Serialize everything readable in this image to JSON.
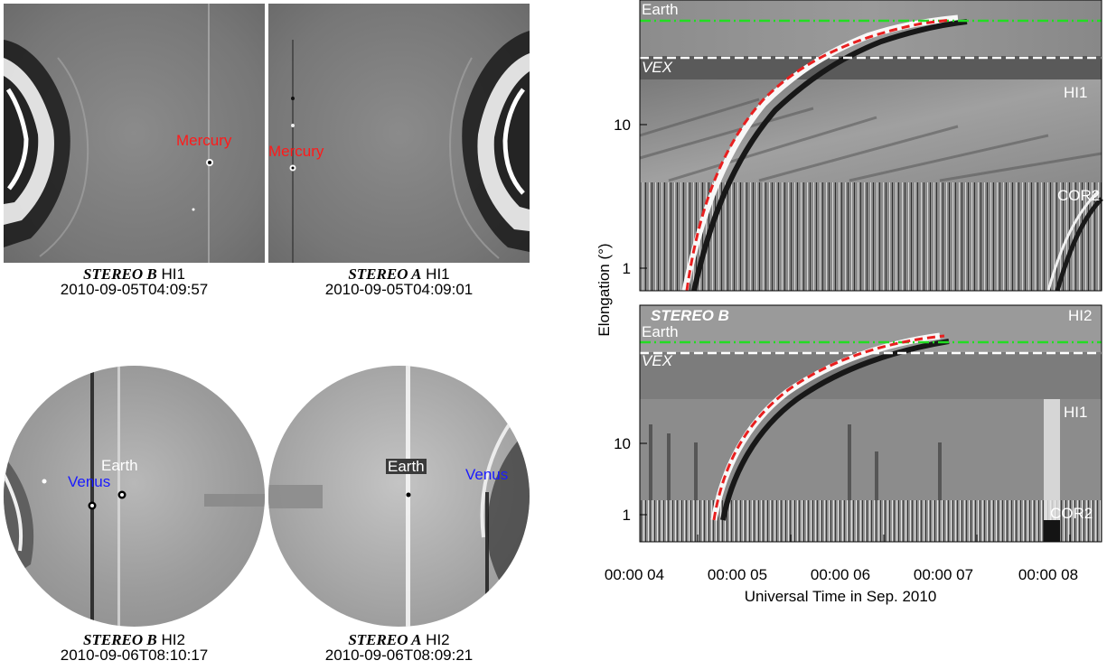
{
  "top_left": {
    "satellite": "STEREO B",
    "instrument": "HI1",
    "timestamp": "2010-09-05T04:09:57",
    "planet_label": "Mercury",
    "planet_label_color": "#ff1a1a"
  },
  "top_right": {
    "satellite": "STEREO A",
    "instrument": "HI1",
    "timestamp": "2010-09-05T04:09:01",
    "planet_label": "Mercury",
    "planet_label_color": "#ff1a1a"
  },
  "bottom_left": {
    "satellite": "STEREO B",
    "instrument": "HI2",
    "timestamp": "2010-09-06T08:10:17",
    "earth_label": "Earth",
    "venus_label": "Venus",
    "venus_label_color": "#1a1aff"
  },
  "bottom_right": {
    "satellite": "STEREO A",
    "instrument": "HI2",
    "timestamp": "2010-09-06T08:09:21",
    "earth_label": "Earth",
    "venus_label": "Venus",
    "venus_label_color": "#1a1aff"
  },
  "jmap": {
    "ylabel": "Elongation (°)",
    "xlabel": "Universal Time in Sep. 2010",
    "x_ticks": [
      "00:00 04",
      "00:00 05",
      "00:00 06",
      "00:00 07",
      "00:00 08"
    ],
    "y_ticks": [
      "1",
      "10"
    ],
    "top_panel": {
      "earth_label": "Earth",
      "vex_label": "VEX",
      "hi1_label": "HI1",
      "cor2_label": "COR2"
    },
    "bottom_panel": {
      "satellite_label": "STEREO B",
      "hi2_label": "HI2",
      "earth_label": "Earth",
      "vex_label": "VEX",
      "hi1_label": "HI1",
      "cor2_label": "COR2"
    },
    "colors": {
      "earth_line": "#22dd22",
      "vex_line": "#ffffff",
      "track_fit": "#e82020"
    }
  }
}
